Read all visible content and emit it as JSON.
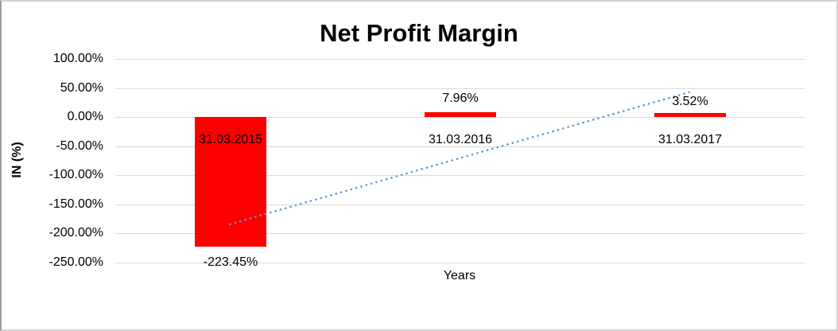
{
  "window": {
    "background": "#ffffff",
    "border_color": "#d2d2d2"
  },
  "chart_data": {
    "type": "bar",
    "title": "Net Profit Margin",
    "xlabel": "Years",
    "ylabel": "IN (%)",
    "categories": [
      "31.03.2015",
      "31.03.2016",
      "31.03.2017"
    ],
    "values": [
      -223.45,
      7.96,
      3.52
    ],
    "data_labels": [
      "-223.45%",
      "7.96%",
      "3.52%"
    ],
    "y_ticks": [
      "100.00%",
      "50.00%",
      "0.00%",
      "-50.00%",
      "-100.00%",
      "-150.00%",
      "-200.00%",
      "-250.00%"
    ],
    "y_tick_values": [
      100,
      50,
      0,
      -50,
      -100,
      -150,
      -200,
      -250
    ],
    "ylim": [
      -250,
      100
    ],
    "grid": true,
    "legend": "none",
    "bar_color": "#ff0000",
    "gridline_color": "#d9d9d9",
    "text_color": "#000000",
    "trendline": {
      "type": "linear",
      "style": "dotted",
      "color": "#5B9BD5",
      "start": {
        "category_index": 0,
        "value": -184
      },
      "end": {
        "category_index": 2,
        "value": 43
      }
    }
  }
}
